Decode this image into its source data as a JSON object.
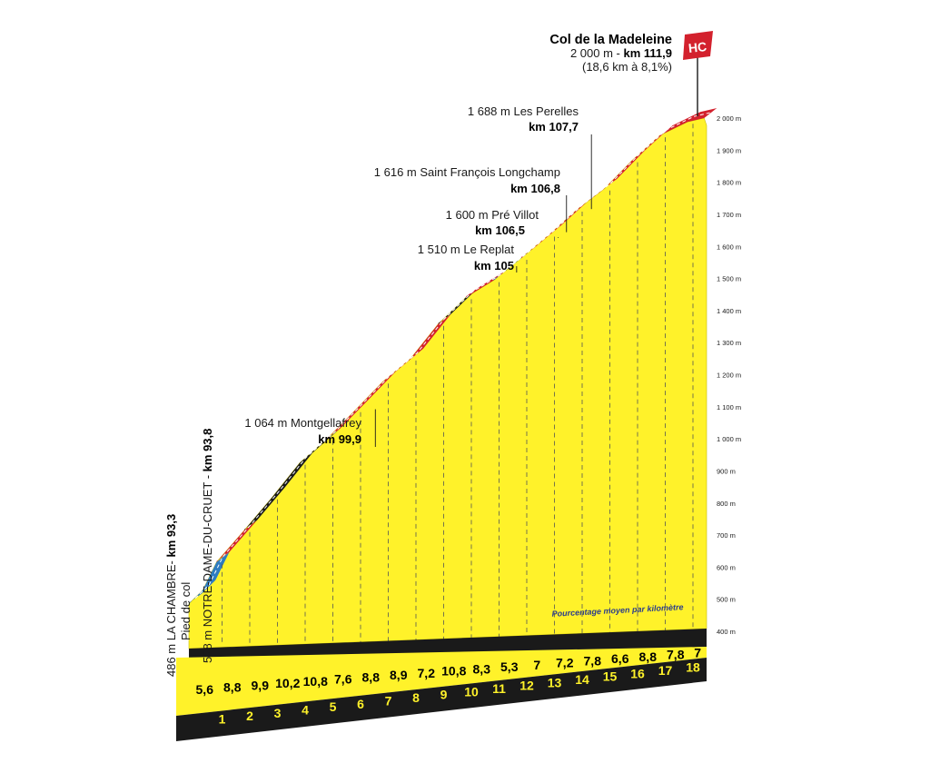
{
  "colors": {
    "profile_fill": "#fff22a",
    "road_hard": "#d3212d",
    "road_steep": "#1a1a1a",
    "road_easy": "#2f7cc1",
    "base_dark": "#1a1a1a",
    "base_label": "#fff22a",
    "hc_badge": "#d3212d"
  },
  "summit": {
    "name": "Col de la Madeleine",
    "category": "HC",
    "altitude_prefix": "2 000 m - ",
    "km": "km 111,9",
    "climb_stats": "(18,6 km à 8,1%)"
  },
  "start_labels": {
    "town_text": "486 m LA CHAMBRE- ",
    "town_km": "km 93,3",
    "pied_de_col": "Pied de col",
    "foot_text": "528 m NOTRE-DAME-DU-CRUET - ",
    "foot_km": "km 93,8"
  },
  "waypoints": [
    {
      "name": "1 688 m Les Perelles",
      "km": "km 107,7"
    },
    {
      "name": "1 616 m Saint François Longchamp",
      "km": "km 106,8"
    },
    {
      "name": "1 600 m Pré Villot",
      "km": "km 106,5"
    },
    {
      "name": "1 510 m Le Replat",
      "km": "km 105"
    },
    {
      "name": "1 064 m Montgellafrey",
      "km": "km 99,9"
    }
  ],
  "legend_note": "Pourcentage moyen par kilomètre",
  "chart_data": {
    "type": "area",
    "title": "Col de la Madeleine",
    "x_unit": "km",
    "xlim": [
      0,
      18.6
    ],
    "ylim": [
      400,
      2000
    ],
    "y_ticks": [
      "400 m",
      "500 m",
      "600 m",
      "700 m",
      "800 m",
      "900 m",
      "1 000 m",
      "1 100 m",
      "1 200 m",
      "1 300 m",
      "1 400 m",
      "1 500 m",
      "1 600 m",
      "1 700 m",
      "1 800 m",
      "1 900 m",
      "2 000 m"
    ],
    "km_markers": [
      "1",
      "2",
      "3",
      "4",
      "5",
      "6",
      "7",
      "8",
      "9",
      "10",
      "11",
      "12",
      "13",
      "14",
      "15",
      "16",
      "17",
      "18"
    ],
    "segment_gradients": [
      "5,6",
      "8,8",
      "9,9",
      "10,2",
      "10,8",
      "7,6",
      "8,8",
      "8,9",
      "7,2",
      "10,8",
      "8,3",
      "5,3",
      "7",
      "7,2",
      "7,8",
      "6,6",
      "8,8",
      "7,8",
      "7"
    ],
    "profile": {
      "x": [
        0,
        0.5,
        1,
        2,
        3,
        4,
        5,
        6,
        7,
        8,
        9,
        10,
        11,
        12,
        13,
        14,
        15,
        16,
        17,
        18,
        18.6
      ],
      "y": [
        486,
        528,
        616,
        715,
        817,
        925,
        1001,
        1089,
        1178,
        1250,
        1358,
        1441,
        1494,
        1564,
        1636,
        1714,
        1780,
        1868,
        1946,
        1988,
        2000
      ]
    },
    "difficulty_segments": [
      {
        "from": 0,
        "to": 1,
        "level": "easy"
      },
      {
        "from": 1,
        "to": 2,
        "level": "hard"
      },
      {
        "from": 2,
        "to": 5,
        "level": "steep"
      },
      {
        "from": 5,
        "to": 9,
        "level": "hard"
      },
      {
        "from": 9,
        "to": 10,
        "level": "steep"
      },
      {
        "from": 10,
        "to": 11,
        "level": "hard"
      },
      {
        "from": 11,
        "to": 12,
        "level": "easy"
      },
      {
        "from": 12,
        "to": 18.6,
        "level": "hard"
      }
    ],
    "waypoint_positions": [
      {
        "x": 14.4,
        "y": 1688
      },
      {
        "x": 13.5,
        "y": 1616
      },
      {
        "x": 13.2,
        "y": 1600
      },
      {
        "x": 11.7,
        "y": 1510
      },
      {
        "x": 6.6,
        "y": 1064
      }
    ]
  }
}
